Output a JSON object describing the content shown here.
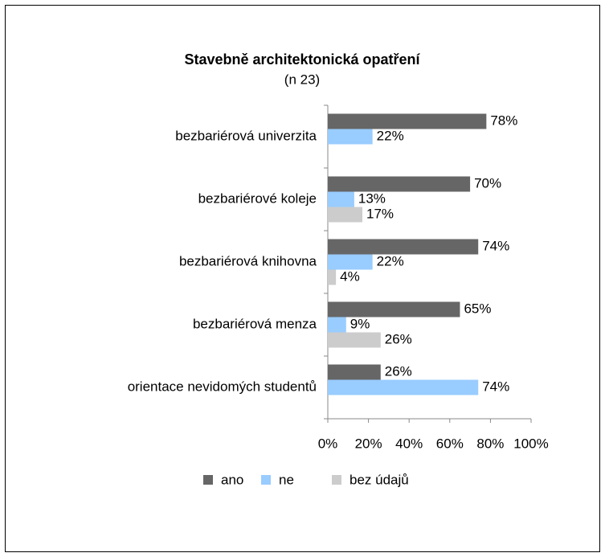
{
  "chart_data": {
    "type": "hbar",
    "title": "Stavebně architektonická opatření",
    "subtitle": "(n 23)",
    "categories": [
      "bezbariérová univerzita",
      "bezbariérové koleje",
      "bezbariérová knihovna",
      "bezbariérová menza",
      "orientace nevidomých studentů"
    ],
    "series": [
      {
        "name": "ano",
        "color": "#666666",
        "values": [
          78,
          70,
          74,
          65,
          26
        ],
        "value_labels": [
          "78%",
          "70%",
          "74%",
          "65%",
          "26%"
        ]
      },
      {
        "name": "ne",
        "color": "#99ccff",
        "values": [
          22,
          13,
          22,
          9,
          74
        ],
        "value_labels": [
          "22%",
          "13%",
          "22%",
          "9%",
          "74%"
        ]
      },
      {
        "name": "bez údajů",
        "color": "#cccccc",
        "values": [
          null,
          17,
          4,
          26,
          null
        ],
        "value_labels": [
          null,
          "17%",
          "4%",
          "26%",
          null
        ]
      }
    ],
    "xlim": [
      0,
      100
    ],
    "xticks": [
      {
        "value": 0,
        "label": "0%"
      },
      {
        "value": 20,
        "label": "20%"
      },
      {
        "value": 40,
        "label": "40%"
      },
      {
        "value": 60,
        "label": "60%"
      },
      {
        "value": 80,
        "label": "80%"
      },
      {
        "value": 100,
        "label": "100%"
      }
    ],
    "grid": false,
    "legend": "bottom"
  }
}
